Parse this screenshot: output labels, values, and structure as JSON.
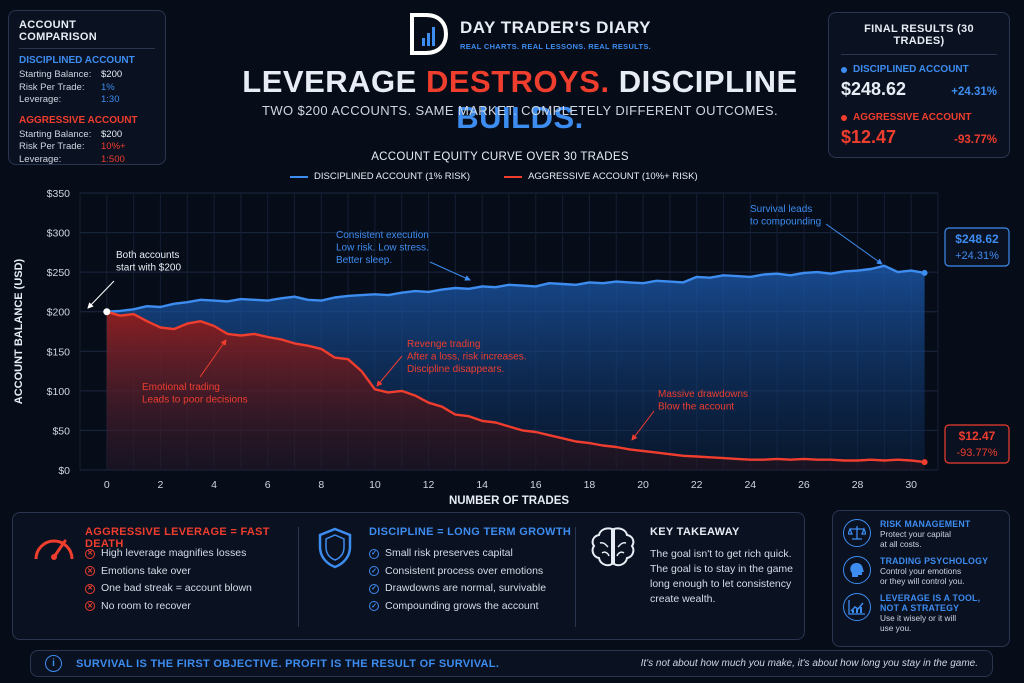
{
  "colors": {
    "blue": "#3d8cf0",
    "red": "#ef3d2e",
    "background": "#070d18"
  },
  "brand": {
    "name": "DAY TRADER'S DIARY",
    "tagline": "REAL CHARTS. REAL LESSONS. REAL RESULTS."
  },
  "headline": {
    "part1": "LEVERAGE ",
    "part2": "DESTROYS.",
    "part3": " DISCIPLINE ",
    "part4": "BUILDS."
  },
  "subheadline": "TWO $200 ACCOUNTS. SAME MARKET. COMPLETELY DIFFERENT OUTCOMES.",
  "account_comparison": {
    "title": "ACCOUNT COMPARISON",
    "disciplined": {
      "title": "DISCIPLINED ACCOUNT",
      "starting_label": "Starting Balance:",
      "starting": "$200",
      "risk_label": "Risk Per Trade:",
      "risk": "1%",
      "leverage_label": "Leverage:",
      "leverage": "1:30"
    },
    "aggressive": {
      "title": "AGGRESSIVE ACCOUNT",
      "starting_label": "Starting Balance:",
      "starting": "$200",
      "risk_label": "Risk Per Trade:",
      "risk": "10%+",
      "leverage_label": "Leverage:",
      "leverage": "1:500"
    }
  },
  "final_results": {
    "title": "FINAL RESULTS (30 TRADES)",
    "disciplined": {
      "label": "DISCIPLINED ACCOUNT",
      "value": "$248.62",
      "pct": "+24.31%"
    },
    "aggressive": {
      "label": "AGGRESSIVE ACCOUNT",
      "value": "$12.47",
      "pct": "-93.77%"
    }
  },
  "chart_data": {
    "type": "area",
    "title": "ACCOUNT EQUITY CURVE OVER 30 TRADES",
    "xlabel": "NUMBER OF TRADES",
    "ylabel": "ACCOUNT BALANCE (USD)",
    "xlim": [
      -1,
      31
    ],
    "ylim": [
      0,
      350
    ],
    "xticks": [
      0,
      2,
      4,
      6,
      8,
      10,
      12,
      14,
      16,
      18,
      20,
      22,
      24,
      26,
      28,
      30
    ],
    "yticks": [
      "$0",
      "$50",
      "$100",
      "$150",
      "$200",
      "$250",
      "$300",
      "$350"
    ],
    "grid": true,
    "series": [
      {
        "name": "DISCIPLINED ACCOUNT (1% RISK)",
        "color": "#3d8cf0",
        "x": [
          0,
          0.5,
          1,
          1.5,
          2,
          2.5,
          3,
          3.5,
          4,
          4.5,
          5,
          5.5,
          6,
          6.5,
          7,
          7.5,
          8,
          8.5,
          9,
          9.5,
          10,
          10.5,
          11,
          11.5,
          12,
          12.5,
          13,
          13.5,
          14,
          14.5,
          15,
          15.5,
          16,
          16.5,
          17,
          17.5,
          18,
          18.5,
          19,
          19.5,
          20,
          20.5,
          21,
          21.5,
          22,
          22.5,
          23,
          23.5,
          24,
          24.5,
          25,
          25.5,
          26,
          26.5,
          27,
          27.5,
          28,
          28.5,
          29,
          29.5,
          30,
          30.5
        ],
        "y": [
          200,
          201,
          203,
          207,
          206,
          210,
          212,
          215,
          214,
          213,
          216,
          215,
          214,
          217,
          219,
          215,
          214,
          218,
          220,
          221,
          222,
          221,
          224,
          226,
          225,
          228,
          230,
          229,
          232,
          231,
          234,
          233,
          232,
          236,
          235,
          234,
          237,
          236,
          238,
          237,
          236,
          239,
          238,
          237,
          244,
          243,
          246,
          245,
          244,
          247,
          248,
          246,
          249,
          250,
          248,
          251,
          252,
          254,
          258,
          250,
          252,
          249
        ]
      },
      {
        "name": "AGGRESSIVE ACCOUNT (10%+ RISK)",
        "color": "#ef3d2e",
        "x": [
          0,
          0.5,
          1,
          1.5,
          2,
          2.5,
          3,
          3.5,
          4,
          4.5,
          5,
          5.5,
          6,
          6.5,
          7,
          7.5,
          8,
          8.5,
          9,
          9.5,
          10,
          10.5,
          11,
          11.5,
          12,
          12.5,
          13,
          13.5,
          14,
          14.5,
          15,
          15.5,
          16,
          16.5,
          17,
          17.5,
          18,
          18.5,
          19,
          19.5,
          20,
          20.5,
          21,
          21.5,
          22,
          22.5,
          23,
          23.5,
          24,
          24.5,
          25,
          25.5,
          26,
          26.5,
          27,
          27.5,
          28,
          28.5,
          29,
          29.5,
          30,
          30.5
        ],
        "y": [
          200,
          195,
          197,
          188,
          180,
          178,
          185,
          188,
          182,
          172,
          170,
          172,
          168,
          165,
          160,
          157,
          153,
          142,
          140,
          125,
          102,
          98,
          100,
          94,
          85,
          80,
          70,
          68,
          62,
          60,
          55,
          50,
          48,
          44,
          40,
          36,
          34,
          31,
          29,
          26,
          24,
          22,
          20,
          18,
          17,
          16,
          15,
          14,
          13,
          13,
          14,
          13,
          14,
          13,
          13,
          12,
          12,
          13,
          12,
          13,
          12,
          10
        ]
      }
    ],
    "end_labels": {
      "disciplined": {
        "value": "$248.62",
        "pct": "+24.31%"
      },
      "aggressive": {
        "value": "$12.47",
        "pct": "-93.77%"
      }
    },
    "annotations": {
      "start": "Both accounts\nstart with $200",
      "consistent": "Consistent execution\nLow risk. Low stress.\nBetter sleep.",
      "survival": "Survival leads\nto compounding",
      "emotional": "Emotional trading\nLeads to poor decisions",
      "revenge": "Revenge trading\nAfter a loss, risk increases.\nDiscipline disappears.",
      "drawdowns": "Massive drawdowns\nBlow the account"
    }
  },
  "aggressive_panel": {
    "title": "AGGRESSIVE LEVERAGE = FAST DEATH",
    "icon": "speedometer-icon",
    "items": [
      "High leverage magnifies losses",
      "Emotions take over",
      "One bad streak = account blown",
      "No room to recover"
    ]
  },
  "discipline_panel": {
    "title": "DISCIPLINE = LONG TERM GROWTH",
    "icon": "shield-icon",
    "items": [
      "Small risk preserves capital",
      "Consistent process over emotions",
      "Drawdowns are normal, survivable",
      "Compounding grows the account"
    ]
  },
  "takeaway": {
    "title": "KEY TAKEAWAY",
    "icon": "brain-icon",
    "line1": "The goal isn't to get rich quick.",
    "line2": "The goal is to stay in the game",
    "line3": "long enough to let consistency",
    "line4": "create wealth."
  },
  "tips": [
    {
      "icon": "scales-icon",
      "title": "RISK MANAGEMENT",
      "desc1": "Protect your capital",
      "desc2": "at all costs.",
      "desc3": ""
    },
    {
      "icon": "head-icon",
      "title": "TRADING PSYCHOLOGY",
      "desc1": "Control your emotions",
      "desc2": "or they will control you.",
      "desc3": ""
    },
    {
      "icon": "growth-chart-icon",
      "title": "LEVERAGE IS A TOOL,",
      "title2": "NOT A STRATEGY",
      "desc1": "Use it wisely or it will",
      "desc2": "use you.",
      "desc3": ""
    }
  ],
  "footer": {
    "message": "SURVIVAL IS THE FIRST OBJECTIVE. PROFIT IS THE RESULT OF SURVIVAL.",
    "quote": "It's not about how much you make, it's about how long you stay in the game."
  }
}
